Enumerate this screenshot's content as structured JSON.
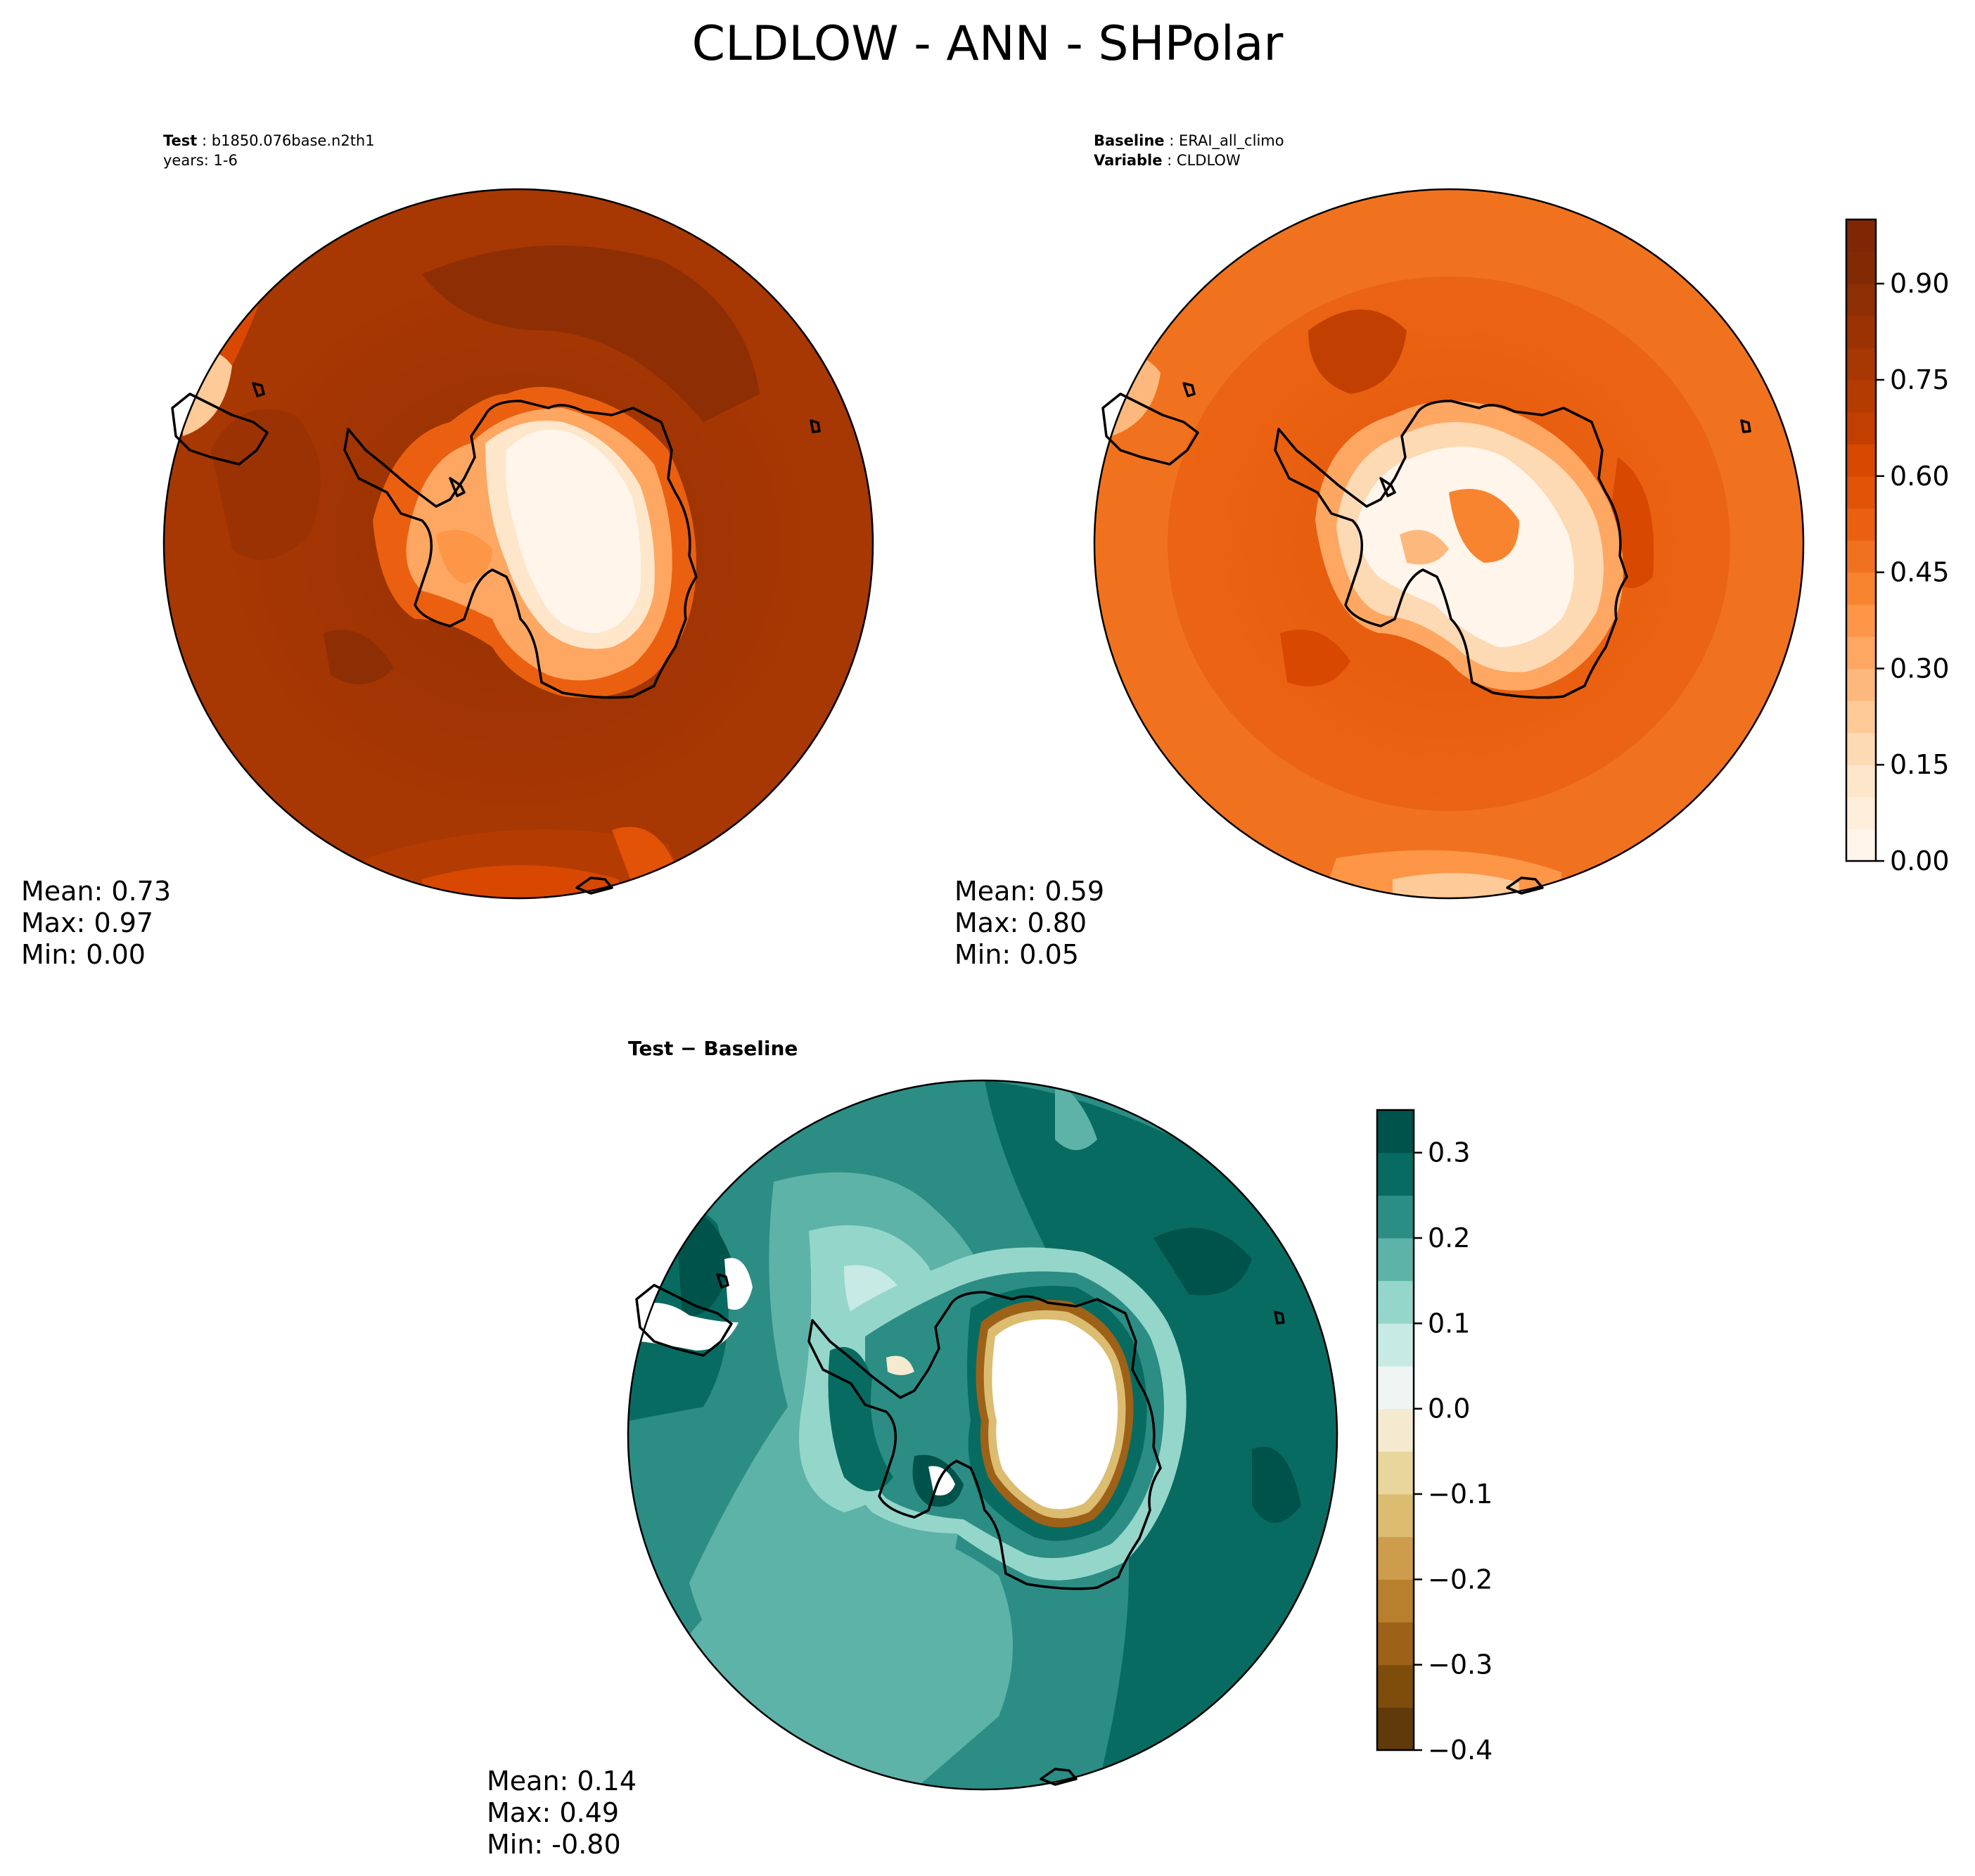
{
  "title": "CLDLOW - ANN - SHPolar",
  "test_panel": {
    "label_key": "Test",
    "label_value": "b1850.076base.n2th1",
    "years": "years: 1-6",
    "stats": {
      "mean": "Mean:  0.73",
      "max": "Max:  0.97",
      "min": "Min:  0.00"
    },
    "stats_values": {
      "mean": 0.73,
      "max": 0.97,
      "min": 0.0
    }
  },
  "baseline_panel": {
    "label_key": "Baseline",
    "label_value": "ERAI_all_climo",
    "variable_key": "Variable",
    "variable_value": "CLDLOW",
    "stats": {
      "mean": "Mean:  0.59",
      "max": "Max:  0.80",
      "min": "Min:  0.05"
    },
    "stats_values": {
      "mean": 0.59,
      "max": 0.8,
      "min": 0.05
    }
  },
  "diff_panel": {
    "title": "Test − Baseline",
    "stats": {
      "mean": "Mean:  0.14",
      "max": "Max:  0.49",
      "min": "Min: -0.80"
    },
    "stats_values": {
      "mean": 0.14,
      "max": 0.49,
      "min": -0.8
    }
  },
  "colorbar_top": {
    "colormap": "Oranges",
    "range": [
      0.0,
      1.0
    ],
    "ticks": [
      "0.00",
      "0.15",
      "0.30",
      "0.45",
      "0.60",
      "0.75",
      "0.90"
    ],
    "tick_values": [
      0.0,
      0.15,
      0.3,
      0.45,
      0.6,
      0.75,
      0.9
    ],
    "levels": 20
  },
  "colorbar_diff": {
    "colormap": "BrBG",
    "range": [
      -0.4,
      0.35
    ],
    "ticks": [
      "−0.4",
      "−0.3",
      "−0.2",
      "−0.1",
      "0.0",
      "0.1",
      "0.2",
      "0.3"
    ],
    "tick_values": [
      -0.4,
      -0.3,
      -0.2,
      -0.1,
      0.0,
      0.1,
      0.2,
      0.3
    ],
    "levels": 15
  },
  "colors": {
    "oranges": [
      "#fff5eb",
      "#feeedb",
      "#fee6cb",
      "#fdd9b4",
      "#fdca98",
      "#fdb97d",
      "#fda762",
      "#fd9647",
      "#f8842f",
      "#f0721f",
      "#ea6010",
      "#e25207",
      "#d84801",
      "#c23f02",
      "#b43c03",
      "#a73703",
      "#9b3203",
      "#8e2e04",
      "#822a04",
      "#7f2704"
    ],
    "brbg": [
      "#603a0a",
      "#7e4d0c",
      "#9d6118",
      "#b8802d",
      "#cd9c4c",
      "#dbbc70",
      "#e9d69c",
      "#f4ead0",
      "#eef5f3",
      "#c8eae4",
      "#95d6cb",
      "#5db3a7",
      "#2c8d85",
      "#086b61",
      "#00534a"
    ]
  }
}
